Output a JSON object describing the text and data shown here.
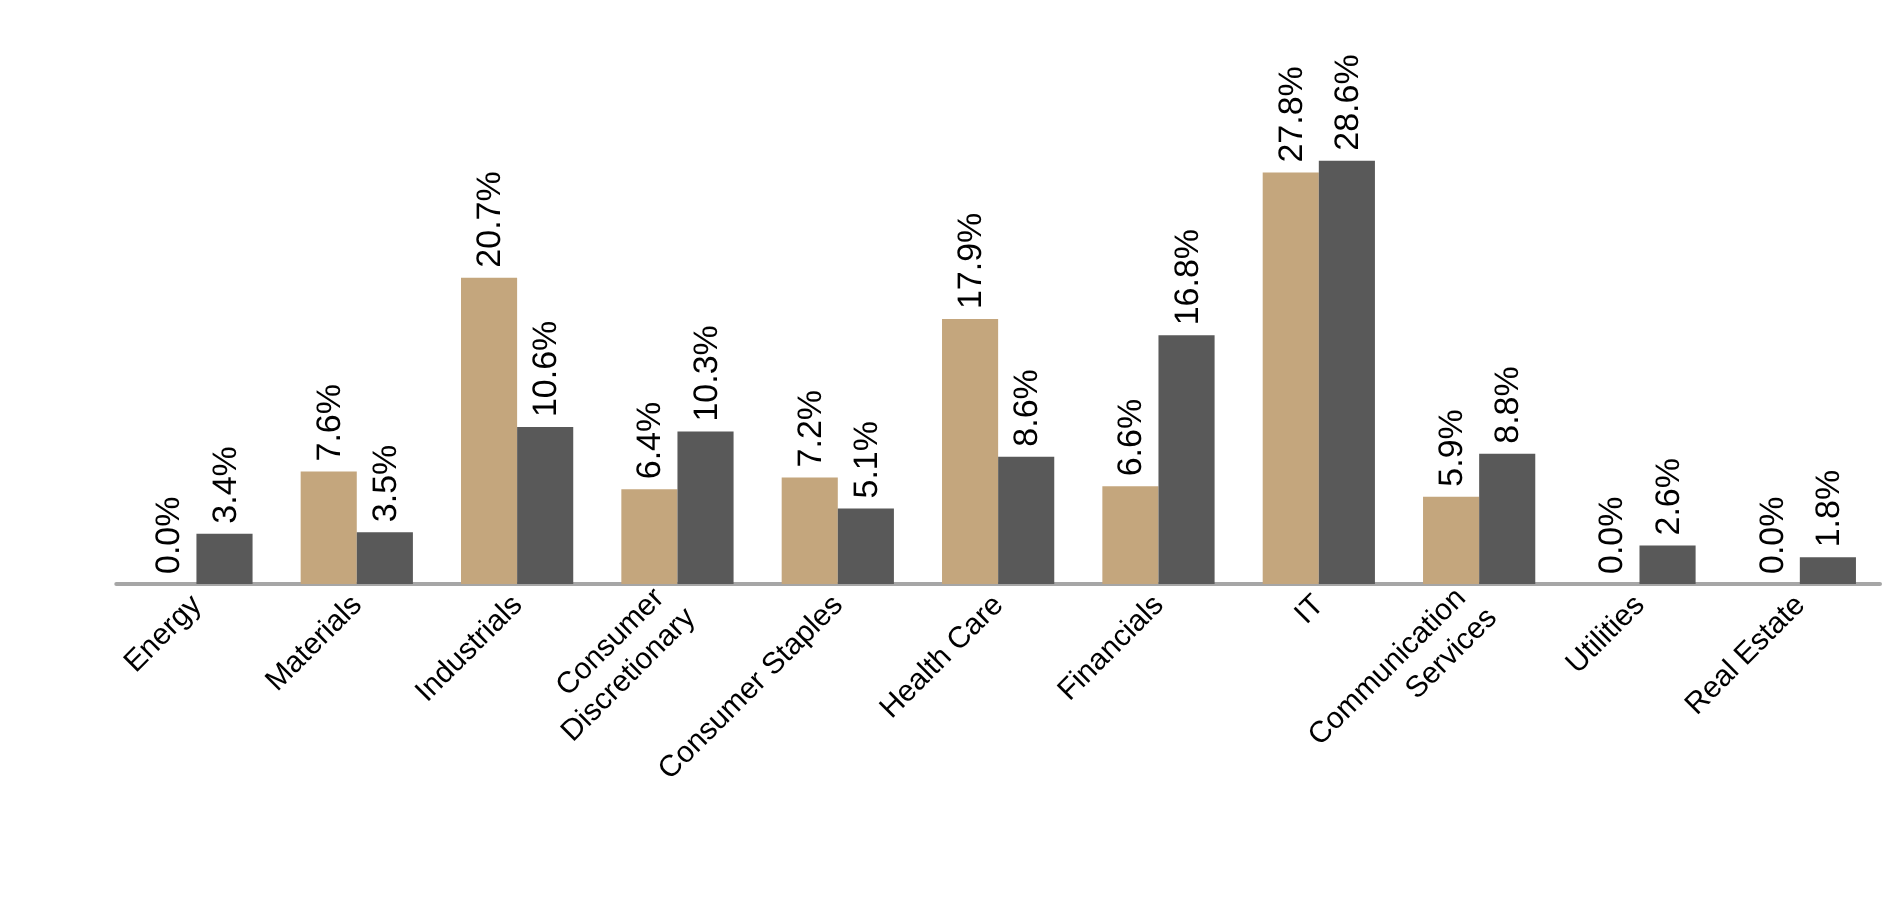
{
  "chart_data": {
    "type": "bar",
    "categories": [
      "Energy",
      "Materials",
      "Industrials",
      "Consumer Discretionary",
      "Consumer Staples",
      "Health Care",
      "Financials",
      "IT",
      "Communication Services",
      "Utilities",
      "Real Estate"
    ],
    "series": [
      {
        "color": "#c4a67d",
        "values": [
          0.0,
          7.6,
          20.7,
          6.4,
          7.2,
          17.9,
          6.6,
          27.8,
          5.9,
          0.0,
          0.0
        ],
        "value_labels": [
          "0.0%",
          "7.6%",
          "20.7%",
          "6.4%",
          "7.2%",
          "17.9%",
          "6.6%",
          "27.8%",
          "5.9%",
          "0.0%",
          "0.0%"
        ]
      },
      {
        "color": "#595959",
        "values": [
          3.4,
          3.5,
          10.6,
          10.3,
          5.1,
          8.6,
          16.8,
          28.6,
          8.8,
          2.6,
          1.8
        ],
        "value_labels": [
          "3.4%",
          "3.5%",
          "10.6%",
          "10.3%",
          "5.1%",
          "8.6%",
          "16.8%",
          "28.6%",
          "8.8%",
          "2.6%",
          "1.8%"
        ]
      }
    ]
  }
}
